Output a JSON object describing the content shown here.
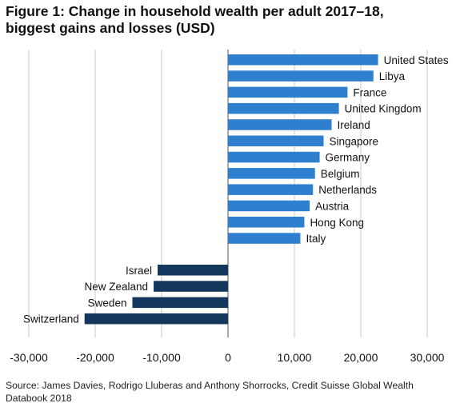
{
  "figure": {
    "title_lines": [
      "Figure 1: Change in household wealth per adult 2017–18,",
      "biggest gains and losses (USD)"
    ],
    "source_lines": [
      "Source: James Davies, Rodrigo Lluberas and Anthony Shorrocks, Credit Suisse Global Wealth",
      "Databook 2018"
    ]
  },
  "colors": {
    "gain": "#2e80cf",
    "loss": "#14375e",
    "grid": "#c8c8c8",
    "axis": "#555555"
  },
  "chart_data": {
    "type": "bar",
    "orientation": "horizontal",
    "title": "Figure 1: Change in household wealth per adult 2017–18, biggest gains and losses (USD)",
    "xlim": [
      -30000,
      30000
    ],
    "xticks": [
      -30000,
      -20000,
      -10000,
      0,
      10000,
      20000,
      30000
    ],
    "xtick_labels": [
      "-30,000",
      "-20,000",
      "-10,000",
      "0",
      "10,000",
      "20,000",
      "30,000"
    ],
    "grid": true,
    "gains": {
      "categories": [
        "United States",
        "Libya",
        "France",
        "United Kingdom",
        "Ireland",
        "Singapore",
        "Germany",
        "Belgium",
        "Netherlands",
        "Austria",
        "Hong Kong",
        "Italy"
      ],
      "values": [
        22600,
        21900,
        18000,
        16700,
        15600,
        14400,
        13800,
        13100,
        12800,
        12300,
        11500,
        10900
      ]
    },
    "losses": {
      "categories": [
        "Israel",
        "New Zealand",
        "Sweden",
        "Switzerland"
      ],
      "values": [
        -10600,
        -11200,
        -14400,
        -21600
      ]
    }
  }
}
